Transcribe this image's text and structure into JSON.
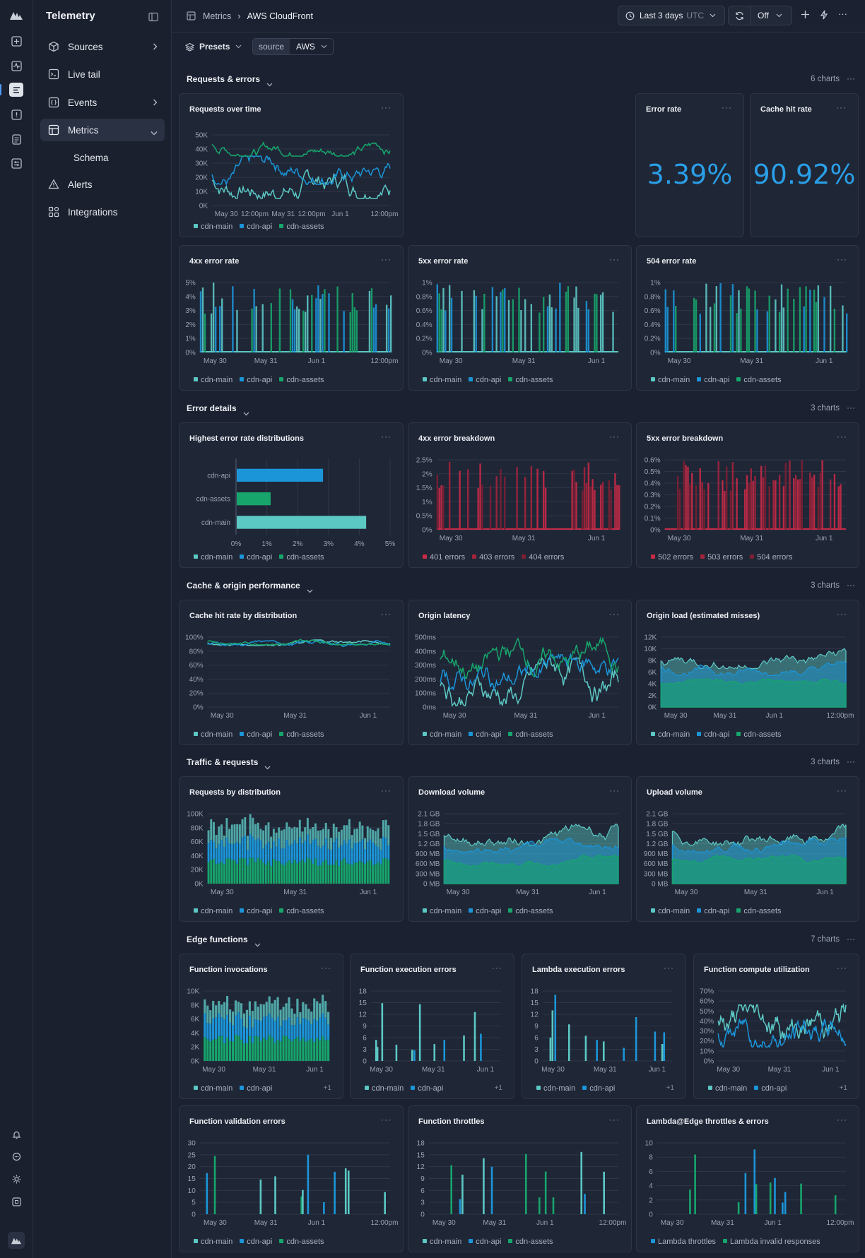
{
  "app": {
    "title": "Telemetry"
  },
  "nav": {
    "items": [
      {
        "label": "Sources",
        "icon": "cube-icon",
        "chev": "right"
      },
      {
        "label": "Live tail",
        "icon": "terminal-icon",
        "chev": ""
      },
      {
        "label": "Events",
        "icon": "braces-icon",
        "chev": "right"
      },
      {
        "label": "Metrics",
        "icon": "grid-icon",
        "chev": "down",
        "active": true
      },
      {
        "label": "Schema",
        "icon": "",
        "chev": "",
        "sub": true
      },
      {
        "label": "Alerts",
        "icon": "warning-icon",
        "chev": ""
      },
      {
        "label": "Integrations",
        "icon": "puzzle-icon",
        "chev": ""
      }
    ]
  },
  "breadcrumb": {
    "root": "Metrics",
    "current": "AWS CloudFront"
  },
  "toolbar": {
    "range": "Last 3 days",
    "tz": "UTC",
    "refresh": "Off"
  },
  "filters": {
    "presets": "Presets",
    "key": "source",
    "value": "AWS"
  },
  "colors": {
    "main": "#5cc8c4",
    "api": "#1b95d8",
    "assets": "#17a56c",
    "e1": "#c82a47",
    "e2": "#a5243c",
    "e3": "#7d1f33"
  },
  "sections": [
    {
      "title": "Requests & errors",
      "count": "6 charts"
    },
    {
      "title": "Error details",
      "count": "3 charts"
    },
    {
      "title": "Cache & origin performance",
      "count": "3 charts"
    },
    {
      "title": "Traffic & requests",
      "count": "3 charts"
    },
    {
      "title": "Edge functions",
      "count": "7 charts"
    }
  ],
  "legend3": [
    "cdn-main",
    "cdn-api",
    "cdn-assets"
  ],
  "plus_more": "+1",
  "chart_data": [
    {
      "id": "c1",
      "title": "Requests over time",
      "type": "line",
      "yticks": [
        "50K",
        "40K",
        "30K",
        "20K",
        "10K",
        "0K"
      ],
      "ylim": [
        0,
        50000
      ],
      "xticks": [
        "May 30",
        "12:00pm",
        "May 31",
        "12:00pm",
        "Jun 1",
        "12:00pm"
      ],
      "legend": [
        "cdn-main",
        "cdn-api",
        "cdn-assets"
      ],
      "series": [
        {
          "name": "cdn-main",
          "range": [
            5000,
            30000
          ]
        },
        {
          "name": "cdn-api",
          "range": [
            15000,
            35000
          ]
        },
        {
          "name": "cdn-assets",
          "range": [
            35000,
            48000
          ]
        }
      ]
    },
    {
      "id": "c2",
      "title": "Error rate",
      "type": "stat",
      "value": "3.39%"
    },
    {
      "id": "c3",
      "title": "Cache hit rate",
      "type": "stat",
      "value": "90.92%"
    },
    {
      "id": "c4",
      "title": "4xx error rate",
      "type": "spike",
      "yticks": [
        "5%",
        "4%",
        "3%",
        "2%",
        "1%",
        "0%"
      ],
      "xticks": [
        "May 30",
        "May 31",
        "Jun 1",
        "12:00pm"
      ],
      "legend": [
        "cdn-main",
        "cdn-api",
        "cdn-assets"
      ],
      "max_value": "4.5%"
    },
    {
      "id": "c5",
      "title": "5xx error rate",
      "type": "spike",
      "yticks": [
        "1%",
        "0.8%",
        "0.6%",
        "0.4%",
        "0.2%",
        "0%"
      ],
      "xticks": [
        "May 30",
        "May 31",
        "Jun 1"
      ],
      "legend": [
        "cdn-main",
        "cdn-api",
        "cdn-assets"
      ],
      "max_value": "0.98%"
    },
    {
      "id": "c6",
      "title": "504 error rate",
      "type": "spike",
      "yticks": [
        "1%",
        "0.8%",
        "0.6%",
        "0.4%",
        "0.2%",
        "0%"
      ],
      "xticks": [
        "May 30",
        "May 31",
        "Jun 1"
      ],
      "legend": [
        "cdn-main",
        "cdn-api",
        "cdn-assets"
      ],
      "max_value": "0.98%"
    },
    {
      "id": "c7",
      "title": "Highest error rate distributions",
      "type": "bar",
      "categories": [
        "cdn-api",
        "cdn-assets",
        "cdn-main"
      ],
      "values": [
        2.8,
        1.1,
        4.2
      ],
      "xticks": [
        "0%",
        "1%",
        "2%",
        "3%",
        "4%",
        "5%"
      ],
      "xlim": [
        0,
        5
      ],
      "legend": [
        "cdn-main",
        "cdn-api",
        "cdn-assets"
      ]
    },
    {
      "id": "c8",
      "title": "4xx error breakdown",
      "type": "spike",
      "yticks": [
        "2.5%",
        "2%",
        "1.5%",
        "1%",
        "0.5%",
        "0%"
      ],
      "xticks": [
        "May 30",
        "May 31",
        "Jun 1"
      ],
      "legend": [
        "401 errors",
        "403 errors",
        "404 errors"
      ]
    },
    {
      "id": "c9",
      "title": "5xx error breakdown",
      "type": "spike",
      "yticks": [
        "0.6%",
        "0.5%",
        "0.4%",
        "0.3%",
        "0.2%",
        "0.1%",
        "0%"
      ],
      "xticks": [
        "May 30",
        "May 31",
        "Jun 1"
      ],
      "legend": [
        "502 errors",
        "503 errors",
        "504 errors"
      ]
    },
    {
      "id": "c10",
      "title": "Cache hit rate by distribution",
      "type": "line",
      "yticks": [
        "100%",
        "80%",
        "60%",
        "40%",
        "20%",
        "0%"
      ],
      "xticks": [
        "May 30",
        "May 31",
        "Jun 1"
      ],
      "legend": [
        "cdn-main",
        "cdn-api",
        "cdn-assets"
      ],
      "series_range": [
        88,
        96
      ]
    },
    {
      "id": "c11",
      "title": "Origin latency",
      "type": "line",
      "yticks": [
        "500ms",
        "400ms",
        "300ms",
        "200ms",
        "100ms",
        "0ms"
      ],
      "xticks": [
        "May 30",
        "May 31",
        "Jun 1"
      ],
      "legend": [
        "cdn-main",
        "cdn-api",
        "cdn-assets"
      ]
    },
    {
      "id": "c12",
      "title": "Origin load (estimated misses)",
      "type": "area",
      "yticks": [
        "12K",
        "10K",
        "8K",
        "6K",
        "4K",
        "2K",
        "0K"
      ],
      "xticks": [
        "May 30",
        "May 31",
        "Jun 1",
        "12:00pm"
      ],
      "legend": [
        "cdn-main",
        "cdn-api",
        "cdn-assets"
      ]
    },
    {
      "id": "c13",
      "title": "Requests by distribution",
      "type": "stacked-bar",
      "yticks": [
        "100K",
        "80K",
        "60K",
        "40K",
        "20K",
        "0K"
      ],
      "xticks": [
        "May 30",
        "May 31",
        "Jun 1"
      ],
      "legend": [
        "cdn-main",
        "cdn-api",
        "cdn-assets"
      ]
    },
    {
      "id": "c14",
      "title": "Download volume",
      "type": "area",
      "yticks": [
        "2.1 GB",
        "1.8 GB",
        "1.5 GB",
        "1.2 GB",
        "900 MB",
        "600 MB",
        "300 MB",
        "0 MB"
      ],
      "xticks": [
        "May 30",
        "May 31",
        "Jun 1"
      ],
      "legend": [
        "cdn-main",
        "cdn-api",
        "cdn-assets"
      ]
    },
    {
      "id": "c15",
      "title": "Upload volume",
      "type": "area",
      "yticks": [
        "2.1 GB",
        "1.8 GB",
        "1.5 GB",
        "1.2 GB",
        "900 MB",
        "600 MB",
        "300 MB",
        "0 MB"
      ],
      "xticks": [
        "May 30",
        "May 31",
        "Jun 1"
      ],
      "legend": [
        "cdn-main",
        "cdn-api",
        "cdn-assets"
      ]
    },
    {
      "id": "c16",
      "title": "Function invocations",
      "type": "stacked-bar",
      "yticks": [
        "10K",
        "8K",
        "6K",
        "4K",
        "2K",
        "0K"
      ],
      "xticks": [
        "May 30",
        "May 31",
        "Jun 1"
      ],
      "legend": [
        "cdn-main",
        "cdn-api"
      ]
    },
    {
      "id": "c17",
      "title": "Function execution errors",
      "type": "sparse-bar",
      "yticks": [
        "18",
        "15",
        "12",
        "9",
        "6",
        "3",
        "0"
      ],
      "xticks": [
        "May 30",
        "May 31",
        "Jun 1"
      ],
      "legend": [
        "cdn-main",
        "cdn-api"
      ]
    },
    {
      "id": "c18",
      "title": "Lambda execution errors",
      "type": "sparse-bar",
      "yticks": [
        "18",
        "15",
        "12",
        "9",
        "6",
        "3",
        "0"
      ],
      "xticks": [
        "May 30",
        "May 31",
        "Jun 1"
      ],
      "legend": [
        "cdn-main",
        "cdn-api"
      ]
    },
    {
      "id": "c19",
      "title": "Function compute utilization",
      "type": "line",
      "yticks": [
        "70%",
        "60%",
        "50%",
        "40%",
        "30%",
        "20%",
        "10%",
        "0%"
      ],
      "xticks": [
        "May 30",
        "May 31",
        "Jun 1"
      ],
      "legend": [
        "cdn-main",
        "cdn-api"
      ]
    },
    {
      "id": "c20",
      "title": "Function validation errors",
      "type": "sparse-bar",
      "yticks": [
        "30",
        "25",
        "20",
        "15",
        "10",
        "5",
        "0"
      ],
      "xticks": [
        "May 30",
        "May 31",
        "Jun 1",
        "12:00pm"
      ],
      "legend": [
        "cdn-main",
        "cdn-api",
        "cdn-assets"
      ]
    },
    {
      "id": "c21",
      "title": "Function throttles",
      "type": "sparse-bar",
      "yticks": [
        "18",
        "15",
        "12",
        "9",
        "6",
        "3",
        "0"
      ],
      "xticks": [
        "May 30",
        "May 31",
        "Jun 1",
        "12:00pm"
      ],
      "legend": [
        "cdn-main",
        "cdn-api",
        "cdn-assets"
      ]
    },
    {
      "id": "c22",
      "title": "Lambda@Edge throttles & errors",
      "type": "sparse-bar",
      "yticks": [
        "10",
        "8",
        "6",
        "4",
        "2",
        "0"
      ],
      "xticks": [
        "May 30",
        "May 31",
        "Jun 1",
        "12:00pm"
      ],
      "legend": [
        "Lambda throttles",
        "Lambda invalid responses"
      ]
    }
  ]
}
